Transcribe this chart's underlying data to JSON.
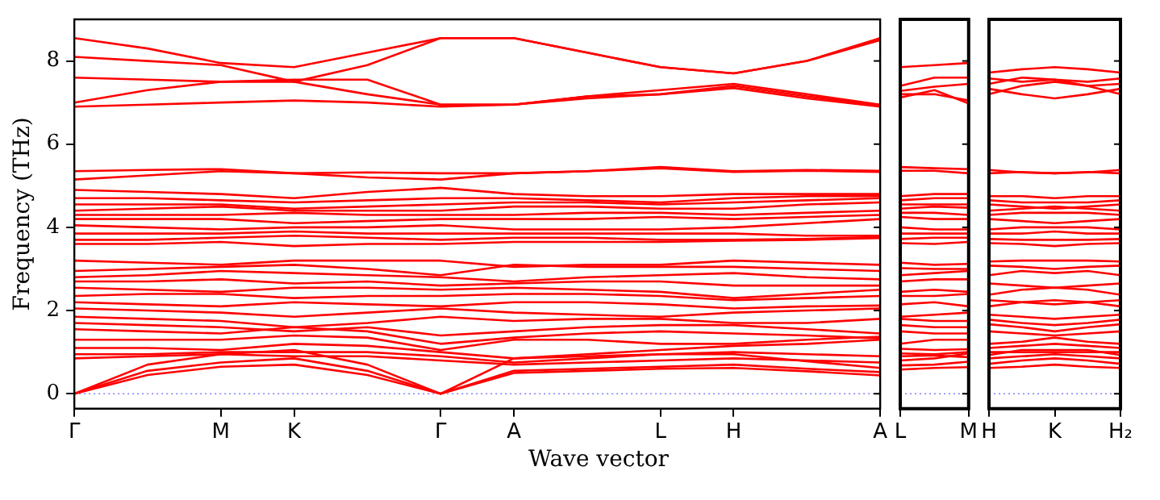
{
  "chart_data": [
    {
      "type": "line",
      "ylabel": "Frequency (THz)",
      "xlabel": "Wave vector",
      "color": "#ff0000",
      "marker": "none",
      "line_style": "solid",
      "categories": [
        "Γ",
        null,
        "M",
        "K",
        null,
        "Γ",
        "A",
        null,
        "L",
        "H",
        null,
        "A"
      ],
      "ylim": [
        -0.36,
        9.0
      ],
      "yticks": [
        0,
        2,
        4,
        6,
        8
      ],
      "ref_lines": [
        {
          "axis": "y",
          "value": 0,
          "color": "#7f7fff",
          "line_style": "dotted"
        }
      ],
      "series": [
        {
          "values": [
            8.55,
            8.3,
            7.95,
            7.85,
            8.2,
            8.55,
            8.55,
            8.2,
            7.85,
            7.7,
            8.0,
            8.55
          ]
        },
        {
          "values": [
            8.1,
            8.0,
            7.9,
            7.5,
            7.9,
            8.55,
            8.55,
            8.2,
            7.85,
            7.7,
            8.0,
            8.5
          ]
        },
        {
          "values": [
            7.6,
            7.55,
            7.5,
            7.55,
            7.55,
            6.95,
            6.95,
            7.15,
            7.3,
            7.45,
            7.2,
            6.95
          ]
        },
        {
          "values": [
            7.0,
            7.3,
            7.5,
            7.5,
            7.2,
            6.95,
            6.95,
            7.15,
            7.2,
            7.4,
            7.15,
            6.93
          ]
        },
        {
          "values": [
            6.9,
            6.95,
            7.0,
            7.05,
            7.0,
            6.9,
            6.95,
            7.1,
            7.2,
            7.35,
            7.1,
            6.9
          ]
        },
        {
          "values": [
            5.35,
            5.38,
            5.4,
            5.3,
            5.32,
            5.3,
            5.3,
            5.35,
            5.45,
            5.35,
            5.38,
            5.36
          ]
        },
        {
          "values": [
            5.15,
            5.25,
            5.35,
            5.3,
            5.2,
            5.15,
            5.3,
            5.35,
            5.42,
            5.33,
            5.36,
            5.33
          ]
        },
        {
          "values": [
            4.9,
            4.85,
            4.8,
            4.7,
            4.85,
            4.95,
            4.8,
            4.75,
            4.75,
            4.8,
            4.8,
            4.8
          ]
        },
        {
          "values": [
            4.7,
            4.7,
            4.65,
            4.6,
            4.65,
            4.7,
            4.7,
            4.65,
            4.6,
            4.7,
            4.75,
            4.75
          ]
        },
        {
          "values": [
            4.55,
            4.55,
            4.55,
            4.45,
            4.5,
            4.55,
            4.6,
            4.6,
            4.55,
            4.6,
            4.65,
            4.7
          ]
        },
        {
          "values": [
            4.4,
            4.45,
            4.5,
            4.4,
            4.4,
            4.4,
            4.5,
            4.5,
            4.45,
            4.45,
            4.55,
            4.6
          ]
        },
        {
          "values": [
            4.3,
            4.3,
            4.3,
            4.35,
            4.3,
            4.3,
            4.3,
            4.35,
            4.35,
            4.3,
            4.35,
            4.4
          ]
        },
        {
          "values": [
            4.2,
            4.2,
            4.2,
            4.1,
            4.15,
            4.2,
            4.2,
            4.2,
            4.25,
            4.2,
            4.25,
            4.3
          ]
        },
        {
          "values": [
            4.05,
            4.0,
            3.95,
            4.0,
            4.0,
            4.05,
            3.95,
            3.95,
            3.95,
            4.0,
            4.1,
            4.2
          ]
        },
        {
          "values": [
            3.85,
            3.85,
            3.85,
            3.9,
            3.85,
            3.85,
            3.85,
            3.85,
            3.85,
            3.85,
            3.8,
            3.8
          ]
        },
        {
          "values": [
            3.7,
            3.7,
            3.75,
            3.8,
            3.75,
            3.7,
            3.75,
            3.75,
            3.7,
            3.7,
            3.72,
            3.77
          ]
        },
        {
          "values": [
            3.6,
            3.6,
            3.65,
            3.55,
            3.6,
            3.6,
            3.65,
            3.65,
            3.65,
            3.68,
            3.7,
            3.74
          ]
        },
        {
          "values": [
            3.2,
            3.15,
            3.1,
            3.2,
            3.2,
            3.2,
            3.05,
            3.1,
            3.1,
            3.2,
            3.15,
            3.1
          ]
        },
        {
          "values": [
            2.95,
            3.0,
            3.05,
            3.1,
            3.0,
            2.85,
            3.1,
            3.05,
            3.05,
            3.05,
            3.0,
            2.95
          ]
        },
        {
          "values": [
            2.8,
            2.85,
            2.95,
            2.9,
            2.85,
            2.8,
            2.7,
            2.8,
            2.85,
            2.9,
            2.8,
            2.75
          ]
        },
        {
          "values": [
            2.7,
            2.7,
            2.75,
            2.65,
            2.7,
            2.6,
            2.65,
            2.7,
            2.7,
            2.6,
            2.6,
            2.6
          ]
        },
        {
          "values": [
            2.55,
            2.5,
            2.45,
            2.55,
            2.55,
            2.5,
            2.55,
            2.5,
            2.45,
            2.3,
            2.4,
            2.5
          ]
        },
        {
          "values": [
            2.35,
            2.4,
            2.4,
            2.3,
            2.35,
            2.35,
            2.4,
            2.4,
            2.35,
            2.25,
            2.3,
            2.35
          ]
        },
        {
          "values": [
            2.2,
            2.15,
            2.1,
            2.2,
            2.15,
            2.1,
            2.2,
            2.2,
            2.15,
            2.05,
            2.1,
            2.12
          ]
        },
        {
          "values": [
            2.05,
            2.0,
            1.95,
            1.85,
            1.95,
            2.05,
            1.95,
            1.9,
            1.85,
            1.95,
            2.0,
            2.05
          ]
        },
        {
          "values": [
            1.85,
            1.8,
            1.75,
            1.6,
            1.7,
            1.85,
            1.75,
            1.8,
            1.8,
            1.7,
            1.7,
            1.8
          ]
        },
        {
          "values": [
            1.7,
            1.65,
            1.6,
            1.5,
            1.6,
            1.4,
            1.5,
            1.6,
            1.65,
            1.65,
            1.55,
            1.45
          ]
        },
        {
          "values": [
            1.55,
            1.5,
            1.45,
            1.6,
            1.5,
            1.2,
            1.35,
            1.45,
            1.5,
            1.45,
            1.4,
            1.33
          ]
        },
        {
          "values": [
            1.3,
            1.3,
            1.3,
            1.4,
            1.35,
            1.05,
            1.3,
            1.3,
            1.2,
            1.2,
            1.3,
            1.37
          ]
        },
        {
          "values": [
            1.1,
            1.1,
            1.05,
            1.2,
            1.15,
            1.0,
            0.85,
            0.95,
            1.05,
            1.15,
            1.2,
            1.3
          ]
        },
        {
          "values": [
            0.95,
            0.95,
            1.0,
            1.0,
            1.0,
            0.9,
            0.75,
            0.85,
            0.95,
            1.0,
            0.95,
            0.9
          ]
        },
        {
          "values": [
            0.85,
            0.9,
            0.95,
            0.9,
            0.9,
            0.8,
            0.7,
            0.75,
            0.8,
            0.85,
            0.8,
            0.75
          ]
        },
        {
          "values": [
            0,
            0.7,
            0.95,
            1.05,
            0.7,
            0,
            0.85,
            0.9,
            0.95,
            0.95,
            0.78,
            0.62
          ]
        },
        {
          "values": [
            0,
            0.55,
            0.75,
            0.85,
            0.55,
            0,
            0.55,
            0.6,
            0.65,
            0.7,
            0.6,
            0.52
          ]
        },
        {
          "values": [
            0,
            0.45,
            0.65,
            0.7,
            0.45,
            0,
            0.5,
            0.55,
            0.6,
            0.62,
            0.54,
            0.44
          ]
        }
      ]
    },
    {
      "type": "line",
      "color": "#ff0000",
      "marker": "none",
      "line_style": "solid",
      "tick_labels": "x",
      "categories": [
        "L",
        null,
        "M"
      ],
      "ylim": [
        -0.36,
        9.0
      ],
      "yticks": [
        0,
        2,
        4,
        6,
        8
      ],
      "ref_lines": [
        {
          "axis": "y",
          "value": 0,
          "color": "#7f7fff",
          "line_style": "dotted"
        }
      ],
      "series": [
        {
          "values": [
            7.85,
            7.9,
            7.95
          ]
        },
        {
          "values": [
            7.4,
            7.6,
            7.6
          ]
        },
        {
          "values": [
            7.28,
            7.38,
            7.45
          ]
        },
        {
          "values": [
            7.2,
            7.2,
            7.05
          ]
        },
        {
          "values": [
            7.12,
            7.3,
            6.98
          ]
        },
        {
          "values": [
            5.45,
            5.42,
            5.4
          ]
        },
        {
          "values": [
            5.36,
            5.36,
            5.3
          ]
        },
        {
          "values": [
            4.75,
            4.8,
            4.8
          ]
        },
        {
          "values": [
            4.65,
            4.7,
            4.7
          ]
        },
        {
          "values": [
            4.55,
            4.55,
            4.55
          ]
        },
        {
          "values": [
            4.45,
            4.5,
            4.47
          ]
        },
        {
          "values": [
            4.35,
            4.35,
            4.3
          ]
        },
        {
          "values": [
            4.25,
            4.2,
            4.2
          ]
        },
        {
          "values": [
            4.0,
            3.95,
            3.95
          ]
        },
        {
          "values": [
            3.85,
            3.85,
            3.85
          ]
        },
        {
          "values": [
            3.72,
            3.75,
            3.75
          ]
        },
        {
          "values": [
            3.62,
            3.6,
            3.65
          ]
        },
        {
          "values": [
            3.15,
            3.1,
            3.12
          ]
        },
        {
          "values": [
            3.02,
            3.0,
            3.0
          ]
        },
        {
          "values": [
            2.85,
            2.9,
            2.95
          ]
        },
        {
          "values": [
            2.7,
            2.75,
            2.75
          ]
        },
        {
          "values": [
            2.45,
            2.5,
            2.45
          ]
        },
        {
          "values": [
            2.35,
            2.35,
            2.4
          ]
        },
        {
          "values": [
            2.15,
            2.2,
            2.1
          ]
        },
        {
          "values": [
            1.85,
            1.9,
            1.95
          ]
        },
        {
          "values": [
            1.8,
            1.75,
            1.75
          ]
        },
        {
          "values": [
            1.65,
            1.6,
            1.6
          ]
        },
        {
          "values": [
            1.5,
            1.45,
            1.45
          ]
        },
        {
          "values": [
            1.2,
            1.3,
            1.3
          ]
        },
        {
          "values": [
            1.08,
            1.05,
            1.07
          ]
        },
        {
          "values": [
            0.97,
            0.95,
            1.0
          ]
        },
        {
          "values": [
            0.8,
            0.85,
            0.97
          ]
        },
        {
          "values": [
            0.9,
            0.92,
            0.88
          ]
        },
        {
          "values": [
            0.68,
            0.7,
            0.77
          ]
        },
        {
          "values": [
            0.58,
            0.62,
            0.64
          ]
        }
      ]
    },
    {
      "type": "line",
      "color": "#ff0000",
      "marker": "none",
      "line_style": "solid",
      "tick_labels": "x",
      "categories": [
        "H",
        null,
        "K",
        null,
        "H₂"
      ],
      "ylim": [
        -0.36,
        9.0
      ],
      "yticks": [
        0,
        2,
        4,
        6,
        8
      ],
      "ref_lines": [
        {
          "axis": "y",
          "value": 0,
          "color": "#7f7fff",
          "line_style": "dotted"
        }
      ],
      "series": [
        {
          "values": [
            7.72,
            7.8,
            7.85,
            7.8,
            7.72
          ]
        },
        {
          "values": [
            7.58,
            7.5,
            7.55,
            7.5,
            7.58
          ]
        },
        {
          "values": [
            7.45,
            7.6,
            7.55,
            7.4,
            7.45
          ]
        },
        {
          "values": [
            7.33,
            7.2,
            7.1,
            7.2,
            7.33
          ]
        },
        {
          "values": [
            7.2,
            7.4,
            7.5,
            7.4,
            7.2
          ]
        },
        {
          "values": [
            5.38,
            5.32,
            5.3,
            5.32,
            5.38
          ]
        },
        {
          "values": [
            5.3,
            5.33,
            5.3,
            5.33,
            5.3
          ]
        },
        {
          "values": [
            4.75,
            4.75,
            4.7,
            4.75,
            4.75
          ]
        },
        {
          "values": [
            4.65,
            4.6,
            4.6,
            4.6,
            4.65
          ]
        },
        {
          "values": [
            4.55,
            4.5,
            4.45,
            4.5,
            4.55
          ]
        },
        {
          "values": [
            4.4,
            4.45,
            4.5,
            4.45,
            4.4
          ]
        },
        {
          "values": [
            4.3,
            4.35,
            4.35,
            4.35,
            4.3
          ]
        },
        {
          "values": [
            4.2,
            4.15,
            4.1,
            4.15,
            4.2
          ]
        },
        {
          "values": [
            3.95,
            4.0,
            4.0,
            4.0,
            3.95
          ]
        },
        {
          "values": [
            3.85,
            3.85,
            3.9,
            3.85,
            3.85
          ]
        },
        {
          "values": [
            3.72,
            3.7,
            3.7,
            3.7,
            3.72
          ]
        },
        {
          "values": [
            3.62,
            3.6,
            3.55,
            3.6,
            3.62
          ]
        },
        {
          "values": [
            3.18,
            3.2,
            3.2,
            3.2,
            3.18
          ]
        },
        {
          "values": [
            3.08,
            3.05,
            3.0,
            3.05,
            3.08
          ]
        },
        {
          "values": [
            2.85,
            2.95,
            2.9,
            2.95,
            2.85
          ]
        },
        {
          "values": [
            2.65,
            2.6,
            2.55,
            2.6,
            2.65
          ]
        },
        {
          "values": [
            2.38,
            2.5,
            2.55,
            2.5,
            2.38
          ]
        },
        {
          "values": [
            2.25,
            2.2,
            2.15,
            2.2,
            2.25
          ]
        },
        {
          "values": [
            2.1,
            2.2,
            2.25,
            2.2,
            2.1
          ]
        },
        {
          "values": [
            1.9,
            1.85,
            1.8,
            1.85,
            1.9
          ]
        },
        {
          "values": [
            1.78,
            1.7,
            1.65,
            1.7,
            1.78
          ]
        },
        {
          "values": [
            1.67,
            1.6,
            1.5,
            1.6,
            1.67
          ]
        },
        {
          "values": [
            1.5,
            1.45,
            1.4,
            1.45,
            1.5
          ]
        },
        {
          "values": [
            1.2,
            1.25,
            1.35,
            1.25,
            1.2
          ]
        },
        {
          "values": [
            1.1,
            1.15,
            1.2,
            1.15,
            1.1
          ]
        },
        {
          "values": [
            1.0,
            1.0,
            1.0,
            1.0,
            1.0
          ]
        },
        {
          "values": [
            0.85,
            0.9,
            0.95,
            0.9,
            0.85
          ]
        },
        {
          "values": [
            0.93,
            1.05,
            1.05,
            1.05,
            0.93
          ]
        },
        {
          "values": [
            0.72,
            0.8,
            0.85,
            0.8,
            0.72
          ]
        },
        {
          "values": [
            0.62,
            0.65,
            0.7,
            0.65,
            0.62
          ]
        }
      ]
    }
  ]
}
